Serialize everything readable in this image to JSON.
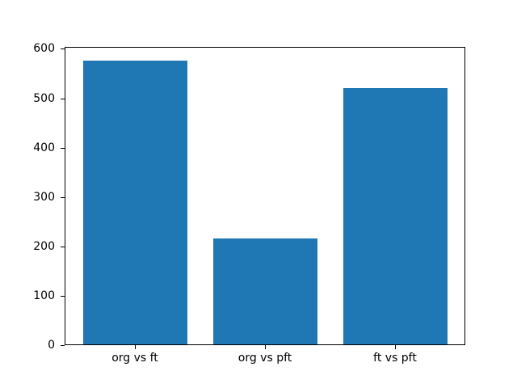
{
  "figure": {
    "background": "#ffffff",
    "plot_background": "#ffffff",
    "spine_color": "#000000",
    "tick_color": "#000000",
    "text_color": "#000000"
  },
  "chart_data": {
    "type": "bar",
    "title": "",
    "xlabel": "",
    "ylabel": "",
    "categories": [
      "org vs ft",
      "org vs pft",
      "ft vs pft"
    ],
    "values": [
      576,
      216,
      520
    ],
    "bar_color": "#1f77b4",
    "ylim": [
      0,
      604
    ],
    "y_ticks": [
      0,
      100,
      200,
      300,
      400,
      500,
      600
    ],
    "grid": false,
    "legend_position": "none"
  }
}
